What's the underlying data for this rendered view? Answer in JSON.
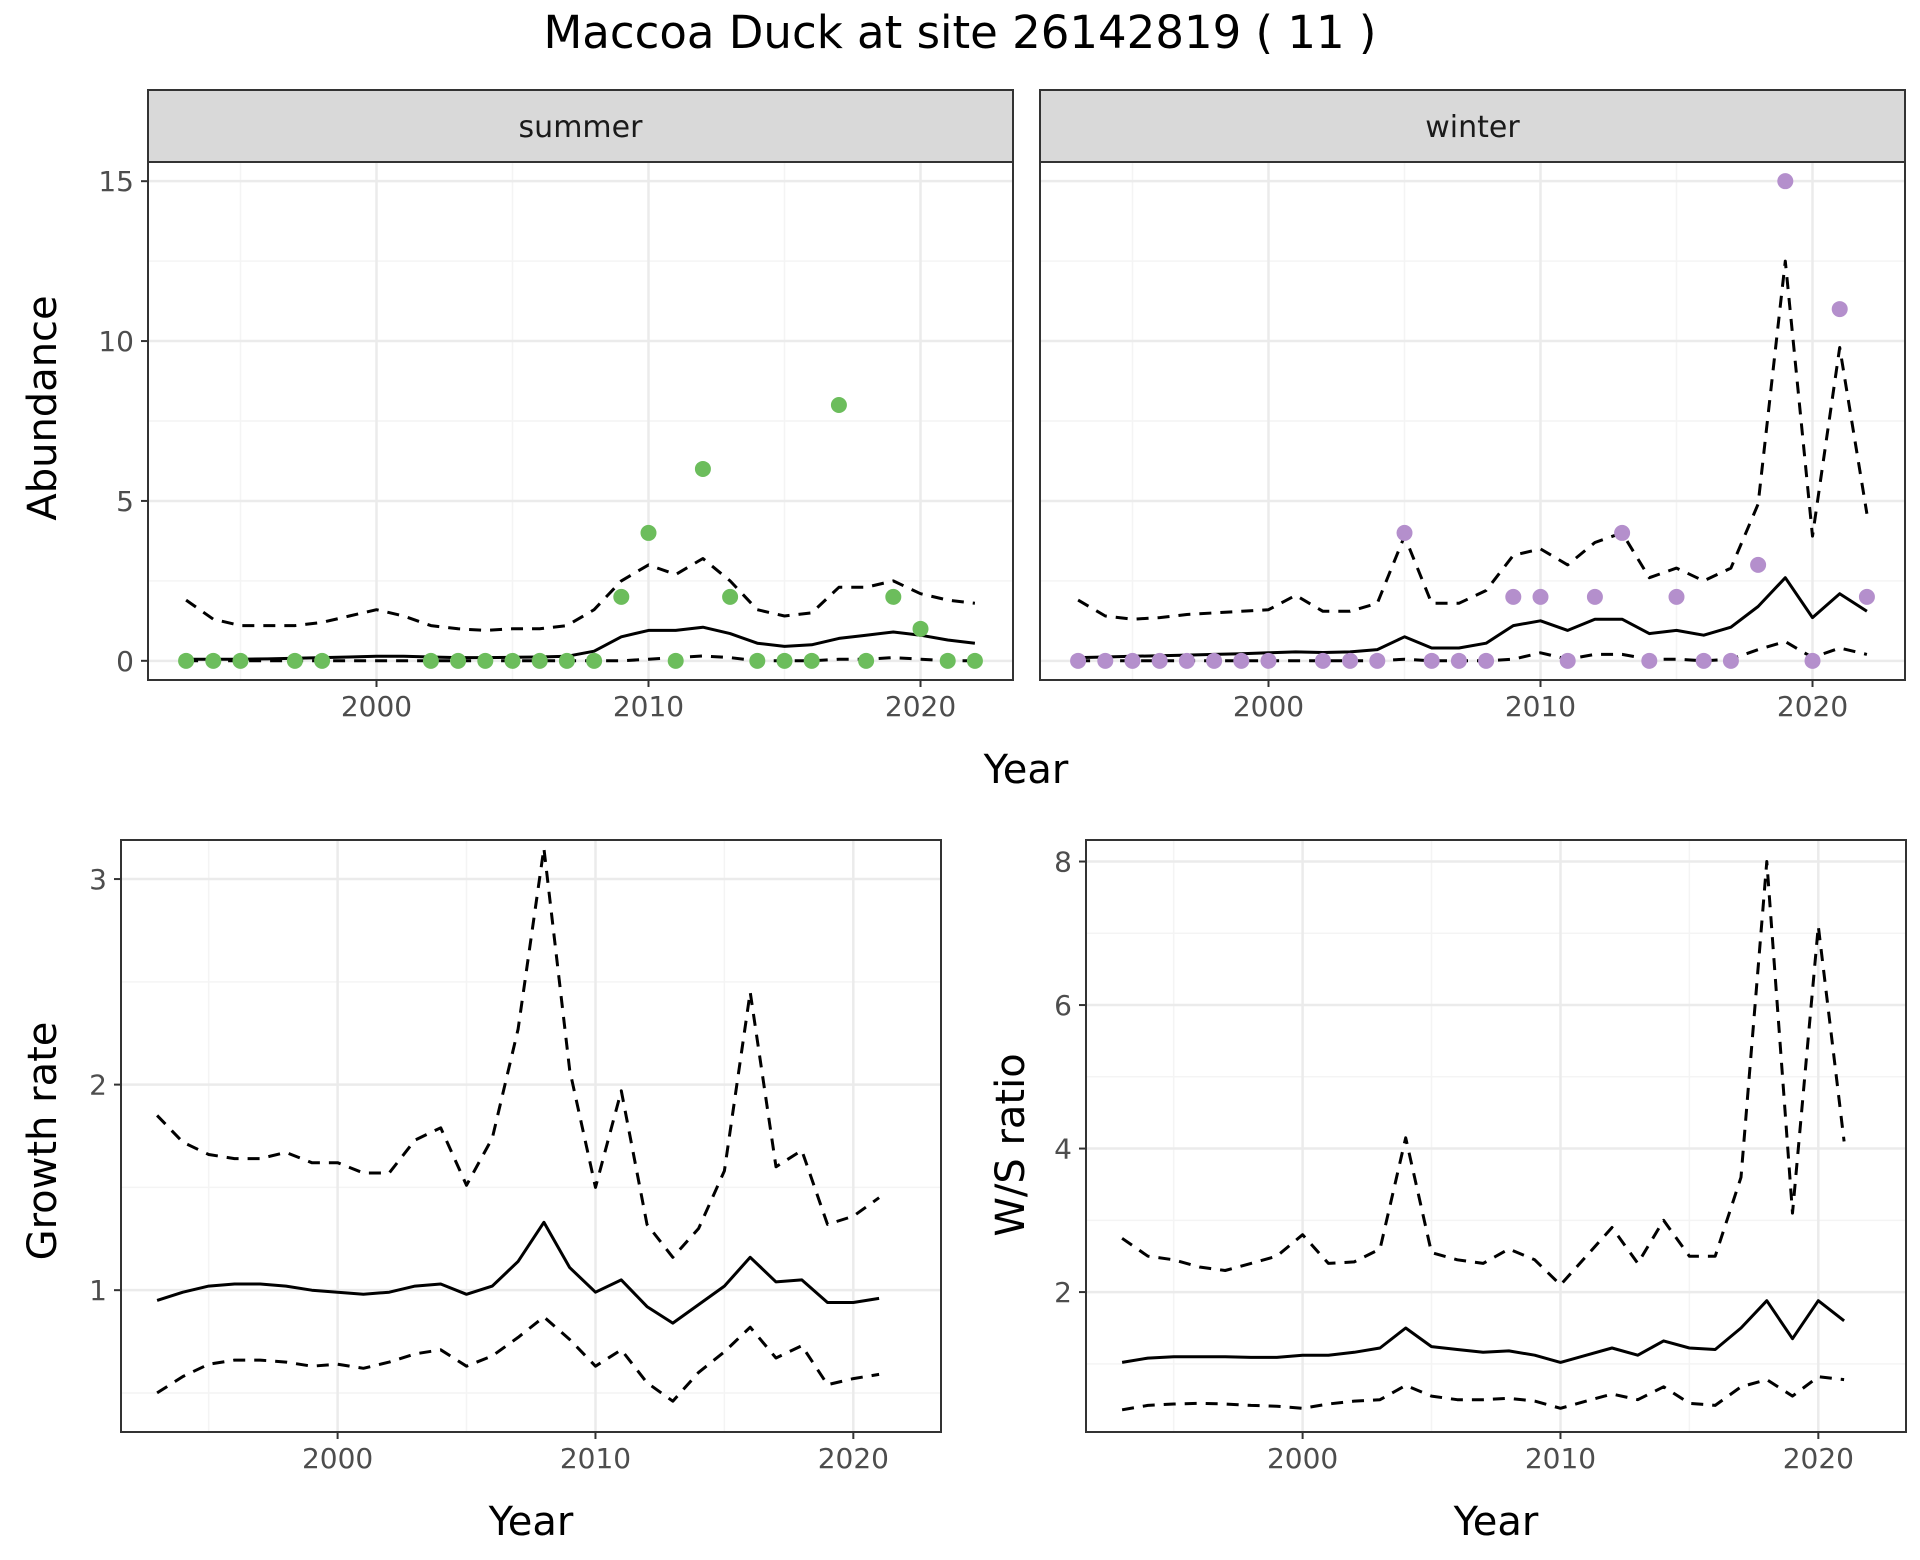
{
  "title": "Maccoa Duck at site 26142819 ( 11 )",
  "colors": {
    "summer": "#6cbd5c",
    "winter": "#b48fcc",
    "line": "#000000",
    "grid_major": "#ebebeb",
    "grid_minor": "#f4f4f4",
    "strip_fill": "#d9d9d9",
    "panel_border": "#333333"
  },
  "chart_data": [
    {
      "type": "line",
      "id": "abundance",
      "xlabel": "Year",
      "ylabel": "Abundance",
      "ylim": [
        -0.6,
        15.6
      ],
      "xlim": [
        1991.6,
        2023.4
      ],
      "x_ticks": [
        2000,
        2010,
        2020
      ],
      "y_ticks": [
        0,
        5,
        10,
        15
      ],
      "grid": true,
      "facets": [
        {
          "label": "summer",
          "point_color": "#6cbd5c",
          "points": {
            "x": [
              1993,
              1994,
              1995,
              1997,
              1998,
              2002,
              2003,
              2004,
              2005,
              2006,
              2007,
              2008,
              2009,
              2010,
              2011,
              2012,
              2013,
              2014,
              2015,
              2016,
              2017,
              2018,
              2019,
              2020,
              2021,
              2022
            ],
            "y": [
              0,
              0,
              0,
              0,
              0,
              0,
              0,
              0,
              0,
              0,
              0,
              0,
              2,
              4,
              0,
              6,
              2,
              0,
              0,
              0,
              8,
              0,
              2,
              1,
              0,
              0
            ]
          },
          "series": [
            {
              "name": "mean",
              "style": "solid",
              "x": [
                1993,
                1994,
                1995,
                1996,
                1997,
                1998,
                1999,
                2000,
                2001,
                2002,
                2003,
                2004,
                2005,
                2006,
                2007,
                2008,
                2009,
                2010,
                2011,
                2012,
                2013,
                2014,
                2015,
                2016,
                2017,
                2018,
                2019,
                2020,
                2021,
                2022
              ],
              "y": [
                0.05,
                0.05,
                0.05,
                0.06,
                0.08,
                0.1,
                0.12,
                0.14,
                0.14,
                0.12,
                0.1,
                0.1,
                0.11,
                0.12,
                0.14,
                0.3,
                0.75,
                0.95,
                0.95,
                1.05,
                0.85,
                0.55,
                0.45,
                0.5,
                0.7,
                0.8,
                0.9,
                0.8,
                0.65,
                0.55
              ]
            },
            {
              "name": "upper",
              "style": "dashed",
              "x": [
                1993,
                1994,
                1995,
                1996,
                1997,
                1998,
                1999,
                2000,
                2001,
                2002,
                2003,
                2004,
                2005,
                2006,
                2007,
                2008,
                2009,
                2010,
                2011,
                2012,
                2013,
                2014,
                2015,
                2016,
                2017,
                2018,
                2019,
                2020,
                2021,
                2022
              ],
              "y": [
                1.9,
                1.3,
                1.1,
                1.1,
                1.1,
                1.2,
                1.4,
                1.6,
                1.4,
                1.1,
                1.0,
                0.95,
                1.0,
                1.0,
                1.1,
                1.6,
                2.5,
                3.0,
                2.7,
                3.2,
                2.5,
                1.6,
                1.4,
                1.5,
                2.3,
                2.3,
                2.5,
                2.1,
                1.9,
                1.8
              ]
            },
            {
              "name": "lower",
              "style": "dashed",
              "x": [
                1993,
                1994,
                1995,
                1996,
                1997,
                1998,
                1999,
                2000,
                2001,
                2002,
                2003,
                2004,
                2005,
                2006,
                2007,
                2008,
                2009,
                2010,
                2011,
                2012,
                2013,
                2014,
                2015,
                2016,
                2017,
                2018,
                2019,
                2020,
                2021,
                2022
              ],
              "y": [
                0,
                0,
                0,
                0,
                0,
                0,
                0,
                0,
                0,
                0,
                0,
                0,
                0,
                0,
                0,
                0,
                0,
                0.05,
                0.1,
                0.15,
                0.1,
                0,
                0,
                0,
                0.05,
                0.05,
                0.1,
                0.05,
                0,
                0
              ]
            }
          ]
        },
        {
          "label": "winter",
          "point_color": "#b48fcc",
          "points": {
            "x": [
              1993,
              1994,
              1995,
              1996,
              1997,
              1998,
              1999,
              2000,
              2002,
              2003,
              2004,
              2005,
              2006,
              2007,
              2008,
              2009,
              2010,
              2011,
              2012,
              2013,
              2014,
              2015,
              2016,
              2017,
              2018,
              2019,
              2020,
              2021,
              2022
            ],
            "y": [
              0,
              0,
              0,
              0,
              0,
              0,
              0,
              0,
              0,
              0,
              0,
              4,
              0,
              0,
              0,
              2,
              2,
              0,
              2,
              4,
              0,
              2,
              0,
              0,
              3,
              15,
              0,
              11,
              2
            ]
          },
          "series": [
            {
              "name": "mean",
              "style": "solid",
              "x": [
                1993,
                1994,
                1995,
                1996,
                1997,
                1998,
                1999,
                2000,
                2001,
                2002,
                2003,
                2004,
                2005,
                2006,
                2007,
                2008,
                2009,
                2010,
                2011,
                2012,
                2013,
                2014,
                2015,
                2016,
                2017,
                2018,
                2019,
                2020,
                2021,
                2022
              ],
              "y": [
                0.1,
                0.12,
                0.14,
                0.16,
                0.18,
                0.2,
                0.22,
                0.25,
                0.28,
                0.26,
                0.28,
                0.35,
                0.75,
                0.4,
                0.4,
                0.55,
                1.1,
                1.25,
                0.95,
                1.3,
                1.3,
                0.85,
                0.95,
                0.8,
                1.05,
                1.7,
                2.6,
                1.35,
                2.1,
                1.55
              ]
            },
            {
              "name": "upper",
              "style": "dashed",
              "x": [
                1993,
                1994,
                1995,
                1996,
                1997,
                1998,
                1999,
                2000,
                2001,
                2002,
                2003,
                2004,
                2005,
                2006,
                2007,
                2008,
                2009,
                2010,
                2011,
                2012,
                2013,
                2014,
                2015,
                2016,
                2017,
                2018,
                2019,
                2020,
                2021,
                2022
              ],
              "y": [
                1.9,
                1.4,
                1.3,
                1.35,
                1.45,
                1.5,
                1.55,
                1.6,
                2.05,
                1.55,
                1.55,
                1.8,
                3.9,
                1.8,
                1.8,
                2.2,
                3.3,
                3.5,
                3.0,
                3.7,
                4.0,
                2.6,
                2.9,
                2.5,
                2.9,
                4.9,
                12.5,
                3.9,
                9.8,
                4.6
              ]
            },
            {
              "name": "lower",
              "style": "dashed",
              "x": [
                1993,
                1994,
                1995,
                1996,
                1997,
                1998,
                1999,
                2000,
                2001,
                2002,
                2003,
                2004,
                2005,
                2006,
                2007,
                2008,
                2009,
                2010,
                2011,
                2012,
                2013,
                2014,
                2015,
                2016,
                2017,
                2018,
                2019,
                2020,
                2021,
                2022
              ],
              "y": [
                0,
                0,
                0,
                0,
                0,
                0,
                0,
                0,
                0,
                0,
                0,
                0,
                0.05,
                0,
                0,
                0,
                0.05,
                0.25,
                0.05,
                0.2,
                0.2,
                0.05,
                0.05,
                0,
                0.05,
                0.35,
                0.6,
                0.1,
                0.4,
                0.2
              ]
            }
          ]
        }
      ]
    },
    {
      "type": "line",
      "id": "growth",
      "xlabel": "Year",
      "ylabel": "Growth rate",
      "ylim": [
        0.31,
        3.19
      ],
      "xlim": [
        1991.6,
        2023.4
      ],
      "x_ticks": [
        2000,
        2010,
        2020
      ],
      "y_ticks": [
        1,
        2,
        3
      ],
      "grid": true,
      "series": [
        {
          "name": "mean",
          "style": "solid",
          "x": [
            1993,
            1994,
            1995,
            1996,
            1997,
            1998,
            1999,
            2000,
            2001,
            2002,
            2003,
            2004,
            2005,
            2006,
            2007,
            2008,
            2009,
            2010,
            2011,
            2012,
            2013,
            2014,
            2015,
            2016,
            2017,
            2018,
            2019,
            2020,
            2021
          ],
          "y": [
            0.95,
            0.99,
            1.02,
            1.03,
            1.03,
            1.02,
            1.0,
            0.99,
            0.98,
            0.99,
            1.02,
            1.03,
            0.98,
            1.02,
            1.14,
            1.33,
            1.11,
            0.99,
            1.05,
            0.92,
            0.84,
            0.93,
            1.02,
            1.16,
            1.04,
            1.05,
            0.94,
            0.94,
            0.96
          ]
        },
        {
          "name": "upper",
          "style": "dashed",
          "x": [
            1993,
            1994,
            1995,
            1996,
            1997,
            1998,
            1999,
            2000,
            2001,
            2002,
            2003,
            2004,
            2005,
            2006,
            2007,
            2008,
            2009,
            2010,
            2011,
            2012,
            2013,
            2014,
            2015,
            2016,
            2017,
            2018,
            2019,
            2020,
            2021
          ],
          "y": [
            1.85,
            1.72,
            1.66,
            1.64,
            1.64,
            1.67,
            1.62,
            1.62,
            1.57,
            1.57,
            1.73,
            1.79,
            1.51,
            1.74,
            2.27,
            3.15,
            2.07,
            1.5,
            1.97,
            1.32,
            1.16,
            1.3,
            1.58,
            2.45,
            1.6,
            1.68,
            1.32,
            1.36,
            1.45
          ]
        },
        {
          "name": "lower",
          "style": "dashed",
          "x": [
            1993,
            1994,
            1995,
            1996,
            1997,
            1998,
            1999,
            2000,
            2001,
            2002,
            2003,
            2004,
            2005,
            2006,
            2007,
            2008,
            2009,
            2010,
            2011,
            2012,
            2013,
            2014,
            2015,
            2016,
            2017,
            2018,
            2019,
            2020,
            2021
          ],
          "y": [
            0.5,
            0.58,
            0.64,
            0.66,
            0.66,
            0.65,
            0.63,
            0.64,
            0.62,
            0.65,
            0.69,
            0.71,
            0.63,
            0.68,
            0.77,
            0.87,
            0.76,
            0.63,
            0.71,
            0.55,
            0.46,
            0.6,
            0.7,
            0.82,
            0.67,
            0.73,
            0.54,
            0.57,
            0.59
          ]
        }
      ]
    },
    {
      "type": "line",
      "id": "ws",
      "xlabel": "Year",
      "ylabel": "W/S ratio",
      "ylim": [
        0.05,
        8.3
      ],
      "xlim": [
        1991.6,
        2023.4
      ],
      "x_ticks": [
        2000,
        2010,
        2020
      ],
      "y_ticks": [
        2,
        4,
        6,
        8
      ],
      "grid": true,
      "series": [
        {
          "name": "mean",
          "style": "solid",
          "x": [
            1993,
            1994,
            1995,
            1996,
            1997,
            1998,
            1999,
            2000,
            2001,
            2002,
            2003,
            2004,
            2005,
            2006,
            2007,
            2008,
            2009,
            2010,
            2011,
            2012,
            2013,
            2014,
            2015,
            2016,
            2017,
            2018,
            2019,
            2020,
            2021
          ],
          "y": [
            1.02,
            1.08,
            1.1,
            1.1,
            1.1,
            1.09,
            1.09,
            1.12,
            1.12,
            1.16,
            1.22,
            1.5,
            1.24,
            1.2,
            1.16,
            1.18,
            1.12,
            1.02,
            1.12,
            1.22,
            1.12,
            1.32,
            1.22,
            1.2,
            1.5,
            1.88,
            1.35,
            1.88,
            1.6
          ]
        },
        {
          "name": "upper",
          "style": "dashed",
          "x": [
            1993,
            1994,
            1995,
            1996,
            1997,
            1998,
            1999,
            2000,
            2001,
            2002,
            2003,
            2004,
            2005,
            2006,
            2007,
            2008,
            2009,
            2010,
            2011,
            2012,
            2013,
            2014,
            2015,
            2016,
            2017,
            2018,
            2019,
            2020,
            2021
          ],
          "y": [
            2.75,
            2.5,
            2.45,
            2.35,
            2.3,
            2.4,
            2.5,
            2.8,
            2.4,
            2.42,
            2.6,
            4.15,
            2.55,
            2.45,
            2.4,
            2.6,
            2.45,
            2.1,
            2.5,
            2.9,
            2.4,
            3.0,
            2.5,
            2.5,
            3.6,
            8.0,
            3.1,
            7.1,
            4.1
          ]
        },
        {
          "name": "lower",
          "style": "dashed",
          "x": [
            1993,
            1994,
            1995,
            1996,
            1997,
            1998,
            1999,
            2000,
            2001,
            2002,
            2003,
            2004,
            2005,
            2006,
            2007,
            2008,
            2009,
            2010,
            2011,
            2012,
            2013,
            2014,
            2015,
            2016,
            2017,
            2018,
            2019,
            2020,
            2021
          ],
          "y": [
            0.36,
            0.42,
            0.44,
            0.45,
            0.44,
            0.42,
            0.41,
            0.38,
            0.44,
            0.48,
            0.5,
            0.7,
            0.55,
            0.5,
            0.5,
            0.52,
            0.48,
            0.38,
            0.48,
            0.58,
            0.5,
            0.68,
            0.45,
            0.42,
            0.68,
            0.78,
            0.55,
            0.82,
            0.78
          ]
        }
      ]
    }
  ]
}
